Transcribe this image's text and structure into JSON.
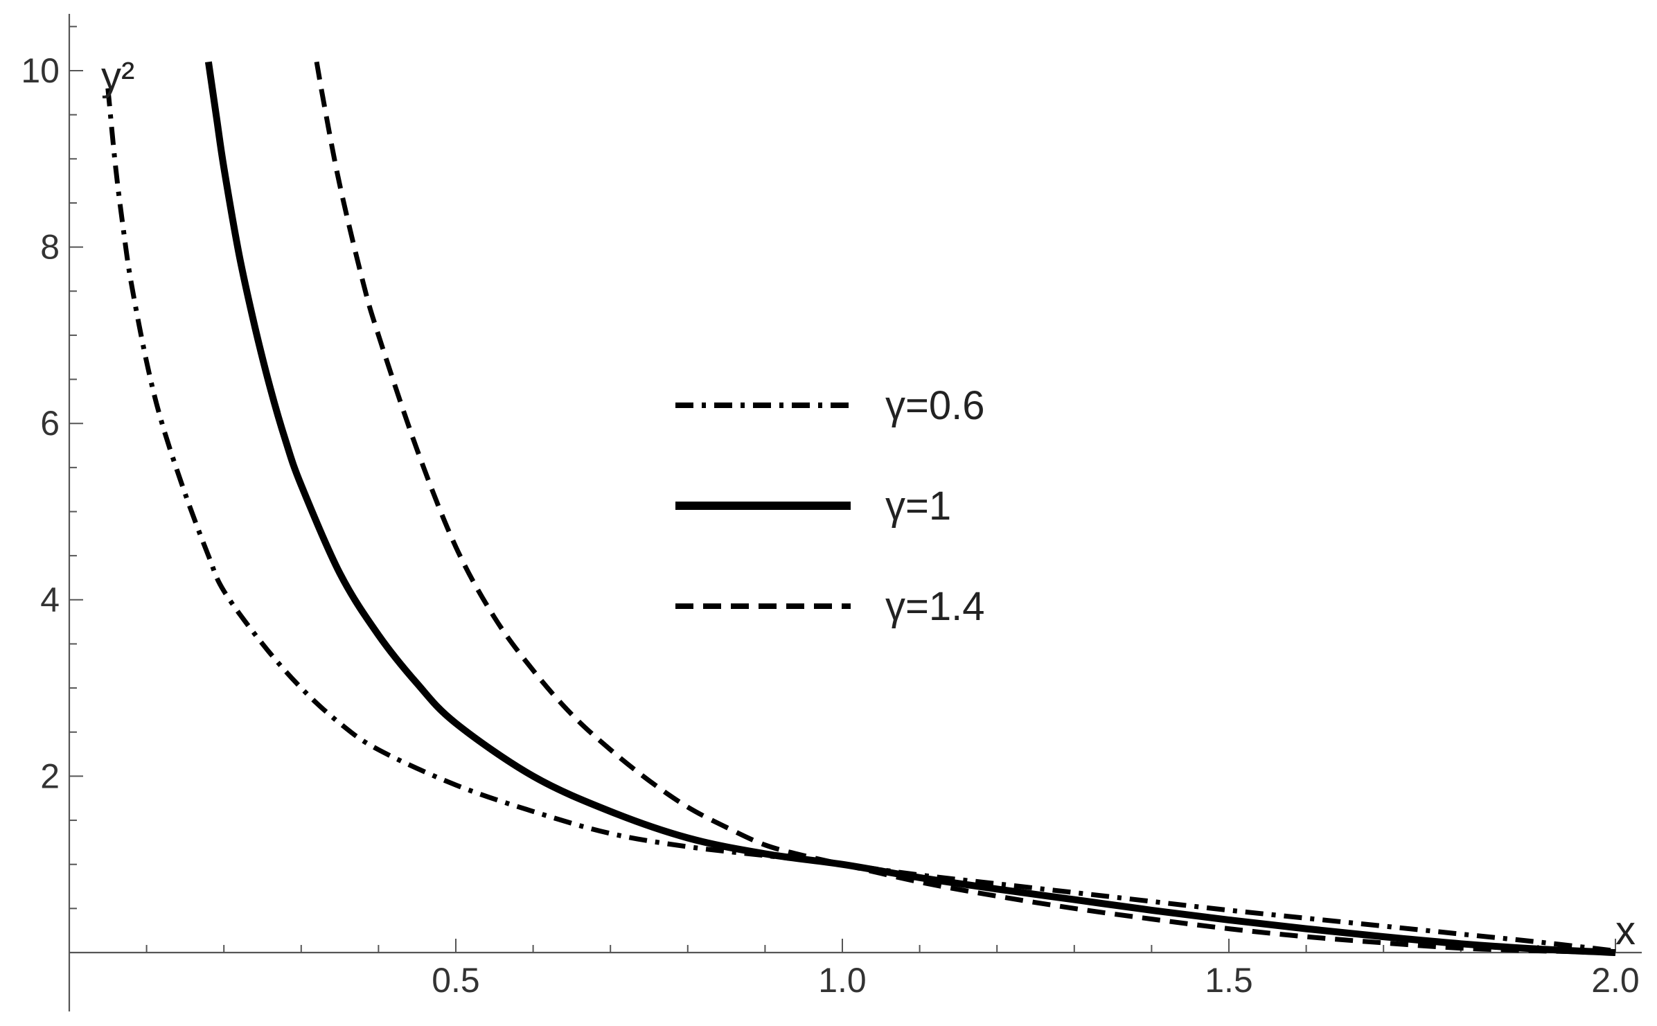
{
  "chart_data": {
    "type": "line",
    "title": "",
    "xlabel": "x",
    "ylabel": "y²",
    "xlim": [
      0,
      2.0
    ],
    "ylim": [
      0,
      10.5
    ],
    "xticks": [
      "0.5",
      "1.0",
      "1.5",
      "2.0"
    ],
    "yticks": [
      "2",
      "4",
      "6",
      "8",
      "10"
    ],
    "legend_position": "center-right",
    "grid": false,
    "series": [
      {
        "name": "γ=0.6",
        "style": "dash-dot",
        "color": "#000000",
        "points": [
          [
            0.05,
            9.8
          ],
          [
            0.06,
            8.9
          ],
          [
            0.07,
            8.2
          ],
          [
            0.08,
            7.6
          ],
          [
            0.1,
            6.7
          ],
          [
            0.12,
            6.0
          ],
          [
            0.15,
            5.2
          ],
          [
            0.18,
            4.5
          ],
          [
            0.2,
            4.1
          ],
          [
            0.25,
            3.5
          ],
          [
            0.3,
            3.0
          ],
          [
            0.35,
            2.6
          ],
          [
            0.4,
            2.3
          ],
          [
            0.5,
            1.9
          ],
          [
            0.6,
            1.6
          ],
          [
            0.7,
            1.35
          ],
          [
            0.8,
            1.2
          ],
          [
            0.9,
            1.1
          ],
          [
            1.0,
            1.0
          ],
          [
            1.1,
            0.88
          ],
          [
            1.2,
            0.78
          ],
          [
            1.3,
            0.68
          ],
          [
            1.4,
            0.58
          ],
          [
            1.5,
            0.48
          ],
          [
            1.6,
            0.39
          ],
          [
            1.7,
            0.3
          ],
          [
            1.8,
            0.21
          ],
          [
            1.9,
            0.12
          ],
          [
            2.0,
            0.02
          ]
        ]
      },
      {
        "name": "γ=1",
        "style": "solid",
        "color": "#000000",
        "points": [
          [
            0.18,
            10.1
          ],
          [
            0.19,
            9.5
          ],
          [
            0.2,
            8.9
          ],
          [
            0.22,
            7.9
          ],
          [
            0.24,
            7.1
          ],
          [
            0.26,
            6.4
          ],
          [
            0.28,
            5.8
          ],
          [
            0.3,
            5.3
          ],
          [
            0.35,
            4.3
          ],
          [
            0.4,
            3.6
          ],
          [
            0.45,
            3.05
          ],
          [
            0.5,
            2.6
          ],
          [
            0.6,
            2.0
          ],
          [
            0.7,
            1.6
          ],
          [
            0.8,
            1.3
          ],
          [
            0.9,
            1.12
          ],
          [
            1.0,
            1.0
          ],
          [
            1.1,
            0.85
          ],
          [
            1.2,
            0.72
          ],
          [
            1.3,
            0.6
          ],
          [
            1.4,
            0.48
          ],
          [
            1.5,
            0.37
          ],
          [
            1.6,
            0.27
          ],
          [
            1.7,
            0.18
          ],
          [
            1.8,
            0.1
          ],
          [
            1.9,
            0.04
          ],
          [
            2.0,
            0.0
          ]
        ]
      },
      {
        "name": "γ=1.4",
        "style": "dashed",
        "color": "#000000",
        "points": [
          [
            0.32,
            10.1
          ],
          [
            0.33,
            9.6
          ],
          [
            0.35,
            8.7
          ],
          [
            0.38,
            7.6
          ],
          [
            0.4,
            7.0
          ],
          [
            0.45,
            5.7
          ],
          [
            0.5,
            4.6
          ],
          [
            0.55,
            3.8
          ],
          [
            0.6,
            3.2
          ],
          [
            0.65,
            2.7
          ],
          [
            0.7,
            2.3
          ],
          [
            0.75,
            1.95
          ],
          [
            0.8,
            1.65
          ],
          [
            0.85,
            1.42
          ],
          [
            0.9,
            1.22
          ],
          [
            0.95,
            1.1
          ],
          [
            1.0,
            1.0
          ],
          [
            1.1,
            0.8
          ],
          [
            1.2,
            0.64
          ],
          [
            1.3,
            0.5
          ],
          [
            1.4,
            0.38
          ],
          [
            1.5,
            0.27
          ],
          [
            1.6,
            0.18
          ],
          [
            1.7,
            0.11
          ],
          [
            1.8,
            0.05
          ],
          [
            1.9,
            0.02
          ],
          [
            2.0,
            0.0
          ]
        ]
      }
    ]
  }
}
